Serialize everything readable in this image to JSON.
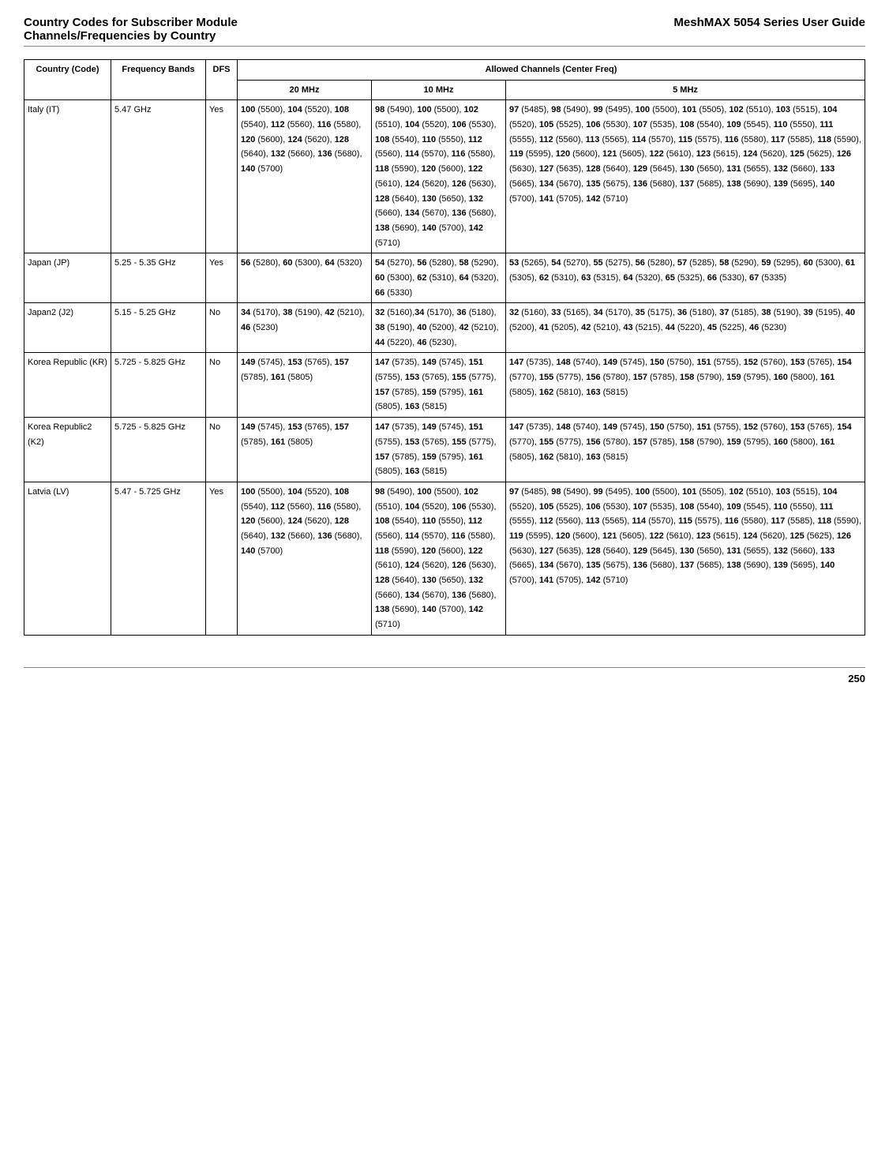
{
  "header": {
    "left_line1": "Country Codes for Subscriber Module",
    "left_line2": "Channels/Frequencies by Country",
    "right": "MeshMAX 5054 Series User Guide"
  },
  "table": {
    "head": {
      "country": "Country (Code)",
      "freq": "Frequency Bands",
      "dfs": "DFS",
      "allowed": "Allowed Channels (Center Freq)",
      "c20": "20 MHz",
      "c10": "10 MHz",
      "c5": "5 MHz"
    },
    "rows": [
      {
        "country": "Italy (IT)",
        "freq": "5.47 GHz",
        "dfs": "Yes",
        "c20": "<b>100</b> (5500), <b>104</b> (5520), <b>108</b> (5540), <b>112</b> (5560), <b>116</b> (5580), <b>120</b> (5600), <b>124</b> (5620), <b>128</b> (5640), <b>132</b> (5660), <b>136</b> (5680), <b>140</b> (5700)",
        "c10": "<b>98</b> (5490), <b>100</b> (5500), <b>102</b> (5510), <b>104</b> (5520), <b>106</b> (5530), <b>108</b> (5540), <b>110</b> (5550), <b>112</b> (5560), <b>114</b> (5570), <b>116</b> (5580), <b>118</b> (5590), <b>120</b> (5600), <b>122</b> (5610), <b>124</b> (5620), <b>126</b> (5630), <b>128</b> (5640), <b>130</b> (5650), <b>132</b> (5660), <b>134</b> (5670), <b>136</b> (5680), <b>138</b> (5690), <b>140</b> (5700), <b>142</b> (5710)",
        "c5": "<b>97</b> (5485), <b>98</b> (5490), <b>99</b> (5495), <b>100</b> (5500), <b>101</b> (5505), <b>102</b> (5510), <b>103</b> (5515), <b>104</b> (5520), <b>105</b> (5525), <b>106</b> (5530), <b>107</b> (5535), <b>108</b> (5540), <b>109</b> (5545), <b>110</b> (5550), <b>111</b> (5555), <b>112</b> (5560), <b>113</b> (5565), <b>114</b> (5570), <b>115</b> (5575), <b>116</b> (5580), <b>117</b> (5585), <b>118</b> (5590), <b>119</b> (5595), <b>120</b> (5600), <b>121</b> (5605), <b>122</b> (5610), <b>123</b> (5615), <b>124</b> (5620), <b>125</b> (5625), <b>126</b> (5630), <b>127</b> (5635), <b>128</b> (5640), <b>129</b> (5645), <b>130</b> (5650), <b>131</b> (5655), <b>132</b> (5660), <b>133</b> (5665), <b>134</b> (5670), <b>135</b> (5675), <b>136</b> (5680), <b>137</b> (5685), <b>138</b> (5690), <b>139</b> (5695), <b>140</b> (5700), <b>141</b> (5705), <b>142</b> (5710)"
      },
      {
        "country": "Japan (JP)",
        "freq": "5.25 - 5.35 GHz",
        "dfs": "Yes",
        "c20": "<b>56</b> (5280), <b>60</b> (5300), <b>64</b> (5320)",
        "c10": "<b>54</b> (5270), <b>56</b> (5280), <b>58</b> (5290), <b>60</b> (5300), <b>62</b> (5310), <b>64</b> (5320), <b>66</b> (5330)",
        "c5": "<b>53</b> (5265), <b>54</b> (5270), <b>55</b> (5275), <b>56</b> (5280), <b>57</b> (5285), <b>58</b> (5290), <b>59</b> (5295), <b>60</b> (5300), <b>61</b> (5305), <b>62</b> (5310), <b>63</b> (5315), <b>64</b> (5320), <b>65</b> (5325), <b>66</b> (5330), <b>67</b> (5335)"
      },
      {
        "country": "Japan2 (J2)",
        "freq": "5.15 - 5.25 GHz",
        "dfs": "No",
        "c20": "<b>34</b> (5170), <b>38</b> (5190), <b>42</b> (5210), <b>46</b> (5230)",
        "c10": "<b>32</b> (5160),<b>34</b> (5170), <b>36</b> (5180), <b>38</b> (5190), <b>40</b> (5200), <b>42</b> (5210), <b>44</b> (5220), <b>46</b> (5230),",
        "c5": "<b>32</b> (5160), <b>33</b> (5165), <b>34</b> (5170), <b>35</b> (5175), <b>36</b> (5180), <b>37</b> (5185), <b>38</b> (5190), <b>39</b> (5195), <b>40</b> (5200), <b>41</b> (5205), <b>42</b> (5210), <b>43</b> (5215), <b>44</b> (5220), <b>45</b> (5225), <b>46</b> (5230)"
      },
      {
        "country": "Korea Republic (KR)",
        "freq": "5.725 - 5.825 GHz",
        "dfs": "No",
        "c20": "<b>149</b> (5745), <b>153</b> (5765), <b>157</b> (5785), <b>161</b> (5805)",
        "c10": "<b>147</b> (5735), <b>149</b> (5745), <b>151</b> (5755), <b>153</b> (5765), <b>155</b> (5775), <b>157</b> (5785), <b>159</b> (5795), <b>161</b> (5805), <b>163</b> (5815)",
        "c5": "<b>147</b> (5735), <b>148</b> (5740), <b>149</b> (5745), <b>150</b> (5750), <b>151</b> (5755), <b>152</b> (5760), <b>153</b> (5765), <b>154</b> (5770), <b>155</b> (5775), <b>156</b> (5780), <b>157</b> (5785), <b>158</b> (5790), <b>159</b> (5795), <b>160</b> (5800), <b>161</b> (5805), <b>162</b> (5810), <b>163</b> (5815)"
      },
      {
        "country": "Korea Republic2 (K2)",
        "freq": "5.725 - 5.825 GHz",
        "dfs": "No",
        "c20": "<b>149</b> (5745), <b>153</b> (5765), <b>157</b> (5785), <b>161</b> (5805)",
        "c10": "<b>147</b> (5735), <b>149</b> (5745), <b>151</b> (5755), <b>153</b> (5765), <b>155</b> (5775), <b>157</b> (5785), <b>159</b> (5795), <b>161</b> (5805), <b>163</b> (5815)",
        "c5": "<b>147</b> (5735), <b>148</b> (5740), <b>149</b> (5745), <b>150</b> (5750), <b>151</b> (5755), <b>152</b> (5760), <b>153</b> (5765), <b>154</b> (5770), <b>155</b> (5775), <b>156</b> (5780), <b>157</b> (5785), <b>158</b> (5790), <b>159</b> (5795), <b>160</b> (5800), <b>161</b> (5805), <b>162</b> (5810), <b>163</b> (5815)"
      },
      {
        "country": "Latvia (LV)",
        "freq": "5.47 - 5.725 GHz",
        "dfs": "Yes",
        "c20": "<b>100</b> (5500), <b>104</b> (5520), <b>108</b> (5540), <b>112</b> (5560), <b>116</b> (5580), <b>120</b> (5600), <b>124</b> (5620), <b>128</b> (5640), <b>132</b> (5660), <b>136</b> (5680), <b>140</b> (5700)",
        "c10": "<b>98</b> (5490), <b>100</b> (5500), <b>102</b> (5510), <b>104</b> (5520), <b>106</b> (5530), <b>108</b> (5540), <b>110</b> (5550), <b>112</b> (5560), <b>114</b> (5570), <b>116</b> (5580), <b>118</b> (5590), <b>120</b> (5600), <b>122</b> (5610), <b>124</b> (5620), <b>126</b> (5630), <b>128</b> (5640), <b>130</b> (5650), <b>132</b> (5660), <b>134</b> (5670), <b>136</b> (5680), <b>138</b> (5690), <b>140</b> (5700), <b>142</b> (5710)",
        "c5": "<b>97</b> (5485), <b>98</b> (5490), <b>99</b> (5495), <b>100</b> (5500), <b>101</b> (5505), <b>102</b> (5510), <b>103</b> (5515), <b>104</b> (5520), <b>105</b> (5525), <b>106</b> (5530), <b>107</b> (5535), <b>108</b> (5540), <b>109</b> (5545), <b>110</b> (5550), <b>111</b> (5555), <b>112</b> (5560), <b>113</b> (5565), <b>114</b> (5570), <b>115</b> (5575), <b>116</b> (5580), <b>117</b> (5585), <b>118</b> (5590), <b>119</b> (5595), <b>120</b> (5600), <b>121</b> (5605), <b>122</b> (5610), <b>123</b> (5615), <b>124</b> (5620), <b>125</b> (5625), <b>126</b> (5630), <b>127</b> (5635), <b>128</b> (5640), <b>129</b> (5645), <b>130</b> (5650), <b>131</b> (5655), <b>132</b> (5660), <b>133</b> (5665), <b>134</b> (5670), <b>135</b> (5675), <b>136</b> (5680), <b>137</b> (5685), <b>138</b> (5690), <b>139</b> (5695), <b>140</b> (5700), <b>141</b> (5705), <b>142</b> (5710)"
      }
    ]
  },
  "page_number": "250"
}
